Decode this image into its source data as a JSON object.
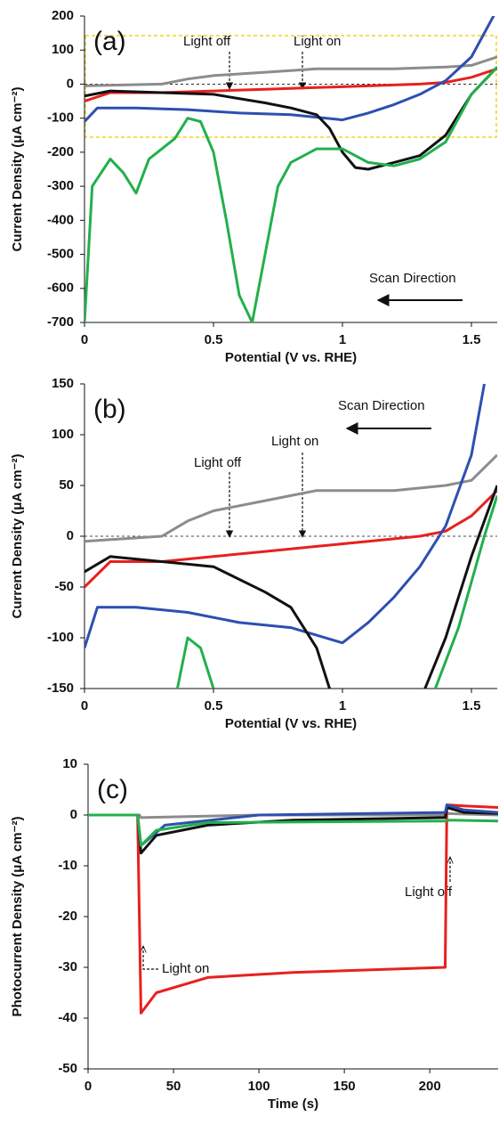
{
  "chart_data": [
    {
      "type": "line",
      "label": "(a)",
      "xlabel": "Potential (V vs. RHE)",
      "ylabel": "Current Density (μA cm⁻²)",
      "xlim": [
        0,
        1.6
      ],
      "ylim": [
        -700,
        200
      ],
      "xticks": [
        0,
        0.5,
        1,
        1.5
      ],
      "yticks": [
        -700,
        -600,
        -500,
        -400,
        -300,
        -200,
        -100,
        0,
        100,
        200
      ],
      "zero_line": true,
      "annotations": [
        "Light off",
        "Light on",
        "Scan Direction"
      ],
      "series": [
        {
          "color": "#8c8c8c",
          "x": [
            0,
            0.3,
            0.4,
            0.5,
            0.6,
            0.7,
            0.8,
            0.9,
            1.0,
            1.2,
            1.4,
            1.5,
            1.6
          ],
          "values": [
            -5,
            0,
            15,
            25,
            30,
            35,
            40,
            45,
            45,
            45,
            50,
            55,
            80
          ]
        },
        {
          "color": "#e8201f",
          "x": [
            0,
            0.1,
            0.3,
            0.5,
            0.7,
            0.9,
            1.1,
            1.3,
            1.4,
            1.5,
            1.6
          ],
          "values": [
            -50,
            -25,
            -25,
            -20,
            -15,
            -10,
            -5,
            0,
            5,
            20,
            45
          ]
        },
        {
          "color": "#2e4fb0",
          "x": [
            0,
            0.05,
            0.2,
            0.4,
            0.6,
            0.8,
            1.0,
            1.1,
            1.2,
            1.3,
            1.4,
            1.5,
            1.55,
            1.6
          ],
          "values": [
            -110,
            -70,
            -70,
            -75,
            -85,
            -90,
            -105,
            -85,
            -60,
            -30,
            10,
            80,
            150,
            220
          ]
        },
        {
          "color": "#111111",
          "x": [
            0,
            0.1,
            0.3,
            0.5,
            0.7,
            0.8,
            0.9,
            0.95,
            1.0,
            1.05,
            1.1,
            1.2,
            1.3,
            1.4,
            1.5,
            1.6
          ],
          "values": [
            -35,
            -20,
            -25,
            -30,
            -55,
            -70,
            -90,
            -130,
            -200,
            -245,
            -250,
            -230,
            -210,
            -150,
            -30,
            50
          ]
        },
        {
          "color": "#22b04b",
          "x": [
            0,
            0.03,
            0.1,
            0.15,
            0.2,
            0.25,
            0.3,
            0.35,
            0.4,
            0.45,
            0.5,
            0.55,
            0.6,
            0.65,
            0.7,
            0.75,
            0.8,
            0.9,
            1.0,
            1.1,
            1.2,
            1.3,
            1.4,
            1.5,
            1.6
          ],
          "values": [
            -700,
            -300,
            -220,
            -260,
            -320,
            -220,
            -190,
            -160,
            -100,
            -110,
            -200,
            -400,
            -620,
            -700,
            -500,
            -300,
            -230,
            -190,
            -190,
            -230,
            -240,
            -220,
            -170,
            -30,
            50
          ]
        }
      ]
    },
    {
      "type": "line",
      "label": "(b)",
      "xlabel": "Potential (V vs. RHE)",
      "ylabel": "Current Density (μA cm⁻²)",
      "xlim": [
        0,
        1.6
      ],
      "ylim": [
        -150,
        150
      ],
      "xticks": [
        0,
        0.5,
        1,
        1.5
      ],
      "yticks": [
        -150,
        -100,
        -50,
        0,
        50,
        100,
        150
      ],
      "zero_line": true,
      "annotations": [
        "Scan Direction",
        "Light on",
        "Light off"
      ],
      "series": [
        {
          "color": "#8c8c8c",
          "x": [
            0,
            0.3,
            0.4,
            0.5,
            0.6,
            0.7,
            0.8,
            0.9,
            1.0,
            1.2,
            1.4,
            1.5,
            1.6
          ],
          "values": [
            -5,
            0,
            15,
            25,
            30,
            35,
            40,
            45,
            45,
            45,
            50,
            55,
            80
          ]
        },
        {
          "color": "#e8201f",
          "x": [
            0,
            0.1,
            0.3,
            0.5,
            0.7,
            0.9,
            1.1,
            1.3,
            1.4,
            1.5,
            1.6
          ],
          "values": [
            -50,
            -25,
            -25,
            -20,
            -15,
            -10,
            -5,
            0,
            5,
            20,
            45
          ]
        },
        {
          "color": "#2e4fb0",
          "x": [
            0,
            0.05,
            0.2,
            0.4,
            0.6,
            0.8,
            1.0,
            1.1,
            1.2,
            1.3,
            1.4,
            1.5,
            1.55
          ],
          "values": [
            -110,
            -70,
            -70,
            -75,
            -85,
            -90,
            -105,
            -85,
            -60,
            -30,
            10,
            80,
            150
          ]
        },
        {
          "color": "#111111",
          "x": [
            0,
            0.1,
            0.3,
            0.5,
            0.7,
            0.8,
            0.9,
            0.95,
            null,
            1.32,
            1.4,
            1.5,
            1.6
          ],
          "values": [
            -35,
            -20,
            -25,
            -30,
            -55,
            -70,
            -110,
            -150,
            null,
            -150,
            -100,
            -20,
            50
          ]
        },
        {
          "color": "#22b04b",
          "x": [
            0.36,
            0.4,
            0.45,
            0.5,
            null,
            1.36,
            1.45,
            1.55,
            1.6
          ],
          "values": [
            -150,
            -100,
            -110,
            -150,
            null,
            -150,
            -90,
            0,
            40
          ]
        }
      ]
    },
    {
      "type": "line",
      "label": "(c)",
      "xlabel": "Time (s)",
      "ylabel": "Photocurrent Density (μA cm⁻²)",
      "xlim": [
        0,
        240
      ],
      "ylim": [
        -50,
        10
      ],
      "xticks": [
        0,
        50,
        100,
        150,
        200
      ],
      "yticks": [
        -50,
        -40,
        -30,
        -20,
        -10,
        0,
        10
      ],
      "zero_line": false,
      "annotations": [
        "Light off",
        "Light on"
      ],
      "series": [
        {
          "color": "#8c8c8c",
          "x": [
            0,
            30,
            31,
            100,
            209,
            210,
            240
          ],
          "values": [
            0,
            0,
            -0.5,
            0,
            0,
            0.3,
            0
          ]
        },
        {
          "color": "#e8201f",
          "x": [
            0,
            29,
            31,
            40,
            70,
            120,
            209,
            210,
            220,
            240
          ],
          "values": [
            0,
            0,
            -39,
            -35,
            -32,
            -31,
            -30,
            2,
            1.8,
            1.5
          ]
        },
        {
          "color": "#111111",
          "x": [
            0,
            29,
            31,
            40,
            70,
            120,
            209,
            210,
            220,
            240
          ],
          "values": [
            0,
            0,
            -7.5,
            -4,
            -2,
            -1,
            -0.5,
            1.5,
            0.5,
            0.3
          ]
        },
        {
          "color": "#2e4fb0",
          "x": [
            0,
            29,
            31,
            45,
            100,
            209,
            210,
            220,
            240
          ],
          "values": [
            0,
            0,
            -6,
            -2,
            0,
            0.5,
            2,
            1,
            0.5
          ]
        },
        {
          "color": "#22b04b",
          "x": [
            0,
            29,
            31,
            40,
            70,
            209,
            210,
            240
          ],
          "values": [
            0,
            0,
            -6,
            -3,
            -1.5,
            -1.2,
            -1,
            -1.2
          ]
        }
      ]
    }
  ]
}
